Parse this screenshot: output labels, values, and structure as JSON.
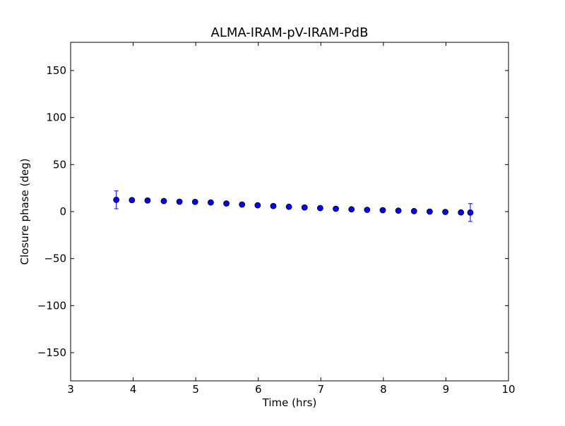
{
  "chart_data": {
    "type": "scatter",
    "title": "ALMA-IRAM-pV-IRAM-PdB",
    "xlabel": "Time (hrs)",
    "ylabel": "Closure phase (deg)",
    "xlim": [
      3,
      10
    ],
    "ylim": [
      -180,
      180
    ],
    "xticks": [
      3,
      4,
      5,
      6,
      7,
      8,
      9,
      10
    ],
    "yticks": [
      150,
      100,
      50,
      0,
      -50,
      -100,
      -150
    ],
    "ytick_labels": [
      "150",
      "100",
      "50",
      "0",
      "−50",
      "−100",
      "−150"
    ],
    "grid": false,
    "marker_color": "#0000ff",
    "series": [
      {
        "points": [
          {
            "x": 3.73,
            "y": 12.5,
            "err": 9.5
          },
          {
            "x": 3.98,
            "y": 12.2
          },
          {
            "x": 4.23,
            "y": 11.8
          },
          {
            "x": 4.49,
            "y": 11.2
          },
          {
            "x": 4.74,
            "y": 10.5
          },
          {
            "x": 4.99,
            "y": 10.3
          },
          {
            "x": 5.24,
            "y": 9.7
          },
          {
            "x": 5.49,
            "y": 8.6
          },
          {
            "x": 5.74,
            "y": 7.5
          },
          {
            "x": 5.99,
            "y": 6.7
          },
          {
            "x": 6.24,
            "y": 5.9
          },
          {
            "x": 6.49,
            "y": 5.1
          },
          {
            "x": 6.74,
            "y": 4.4
          },
          {
            "x": 6.99,
            "y": 3.7
          },
          {
            "x": 7.24,
            "y": 3.0
          },
          {
            "x": 7.49,
            "y": 2.4
          },
          {
            "x": 7.74,
            "y": 1.9
          },
          {
            "x": 7.99,
            "y": 1.5
          },
          {
            "x": 8.24,
            "y": 1.0
          },
          {
            "x": 8.49,
            "y": 0.5
          },
          {
            "x": 8.74,
            "y": 0.0
          },
          {
            "x": 8.99,
            "y": -0.4
          },
          {
            "x": 9.24,
            "y": -0.9
          },
          {
            "x": 9.39,
            "y": -1.0,
            "err": 9.5
          }
        ]
      }
    ]
  }
}
